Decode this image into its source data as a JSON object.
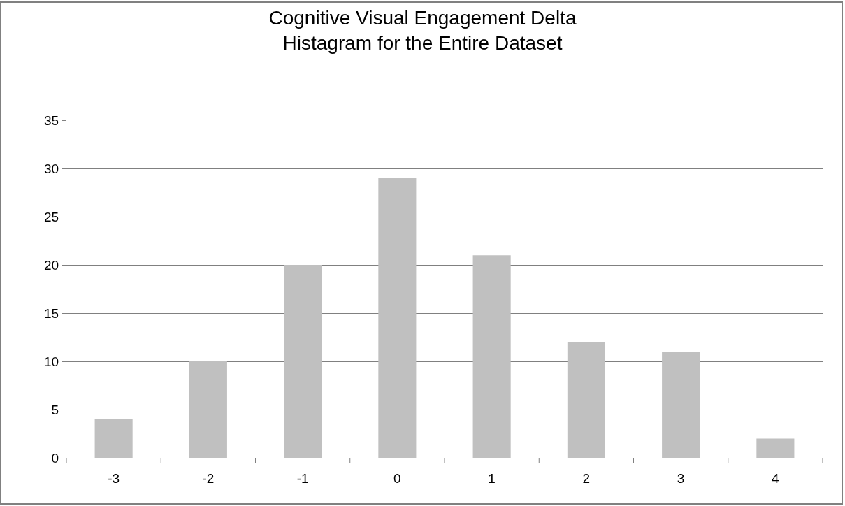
{
  "chart_data": {
    "type": "bar",
    "title": "Cognitive Visual Engagement Delta\nHistagram for the Entire Dataset",
    "categories": [
      "-3",
      "-2",
      "-1",
      "0",
      "1",
      "2",
      "3",
      "4"
    ],
    "values": [
      4,
      10,
      20,
      29,
      21,
      12,
      11,
      2
    ],
    "color": "#c0c0c0",
    "ylim": [
      0,
      35
    ],
    "yticks": [
      0,
      5,
      10,
      15,
      20,
      25,
      30,
      35
    ],
    "grid": "y"
  }
}
